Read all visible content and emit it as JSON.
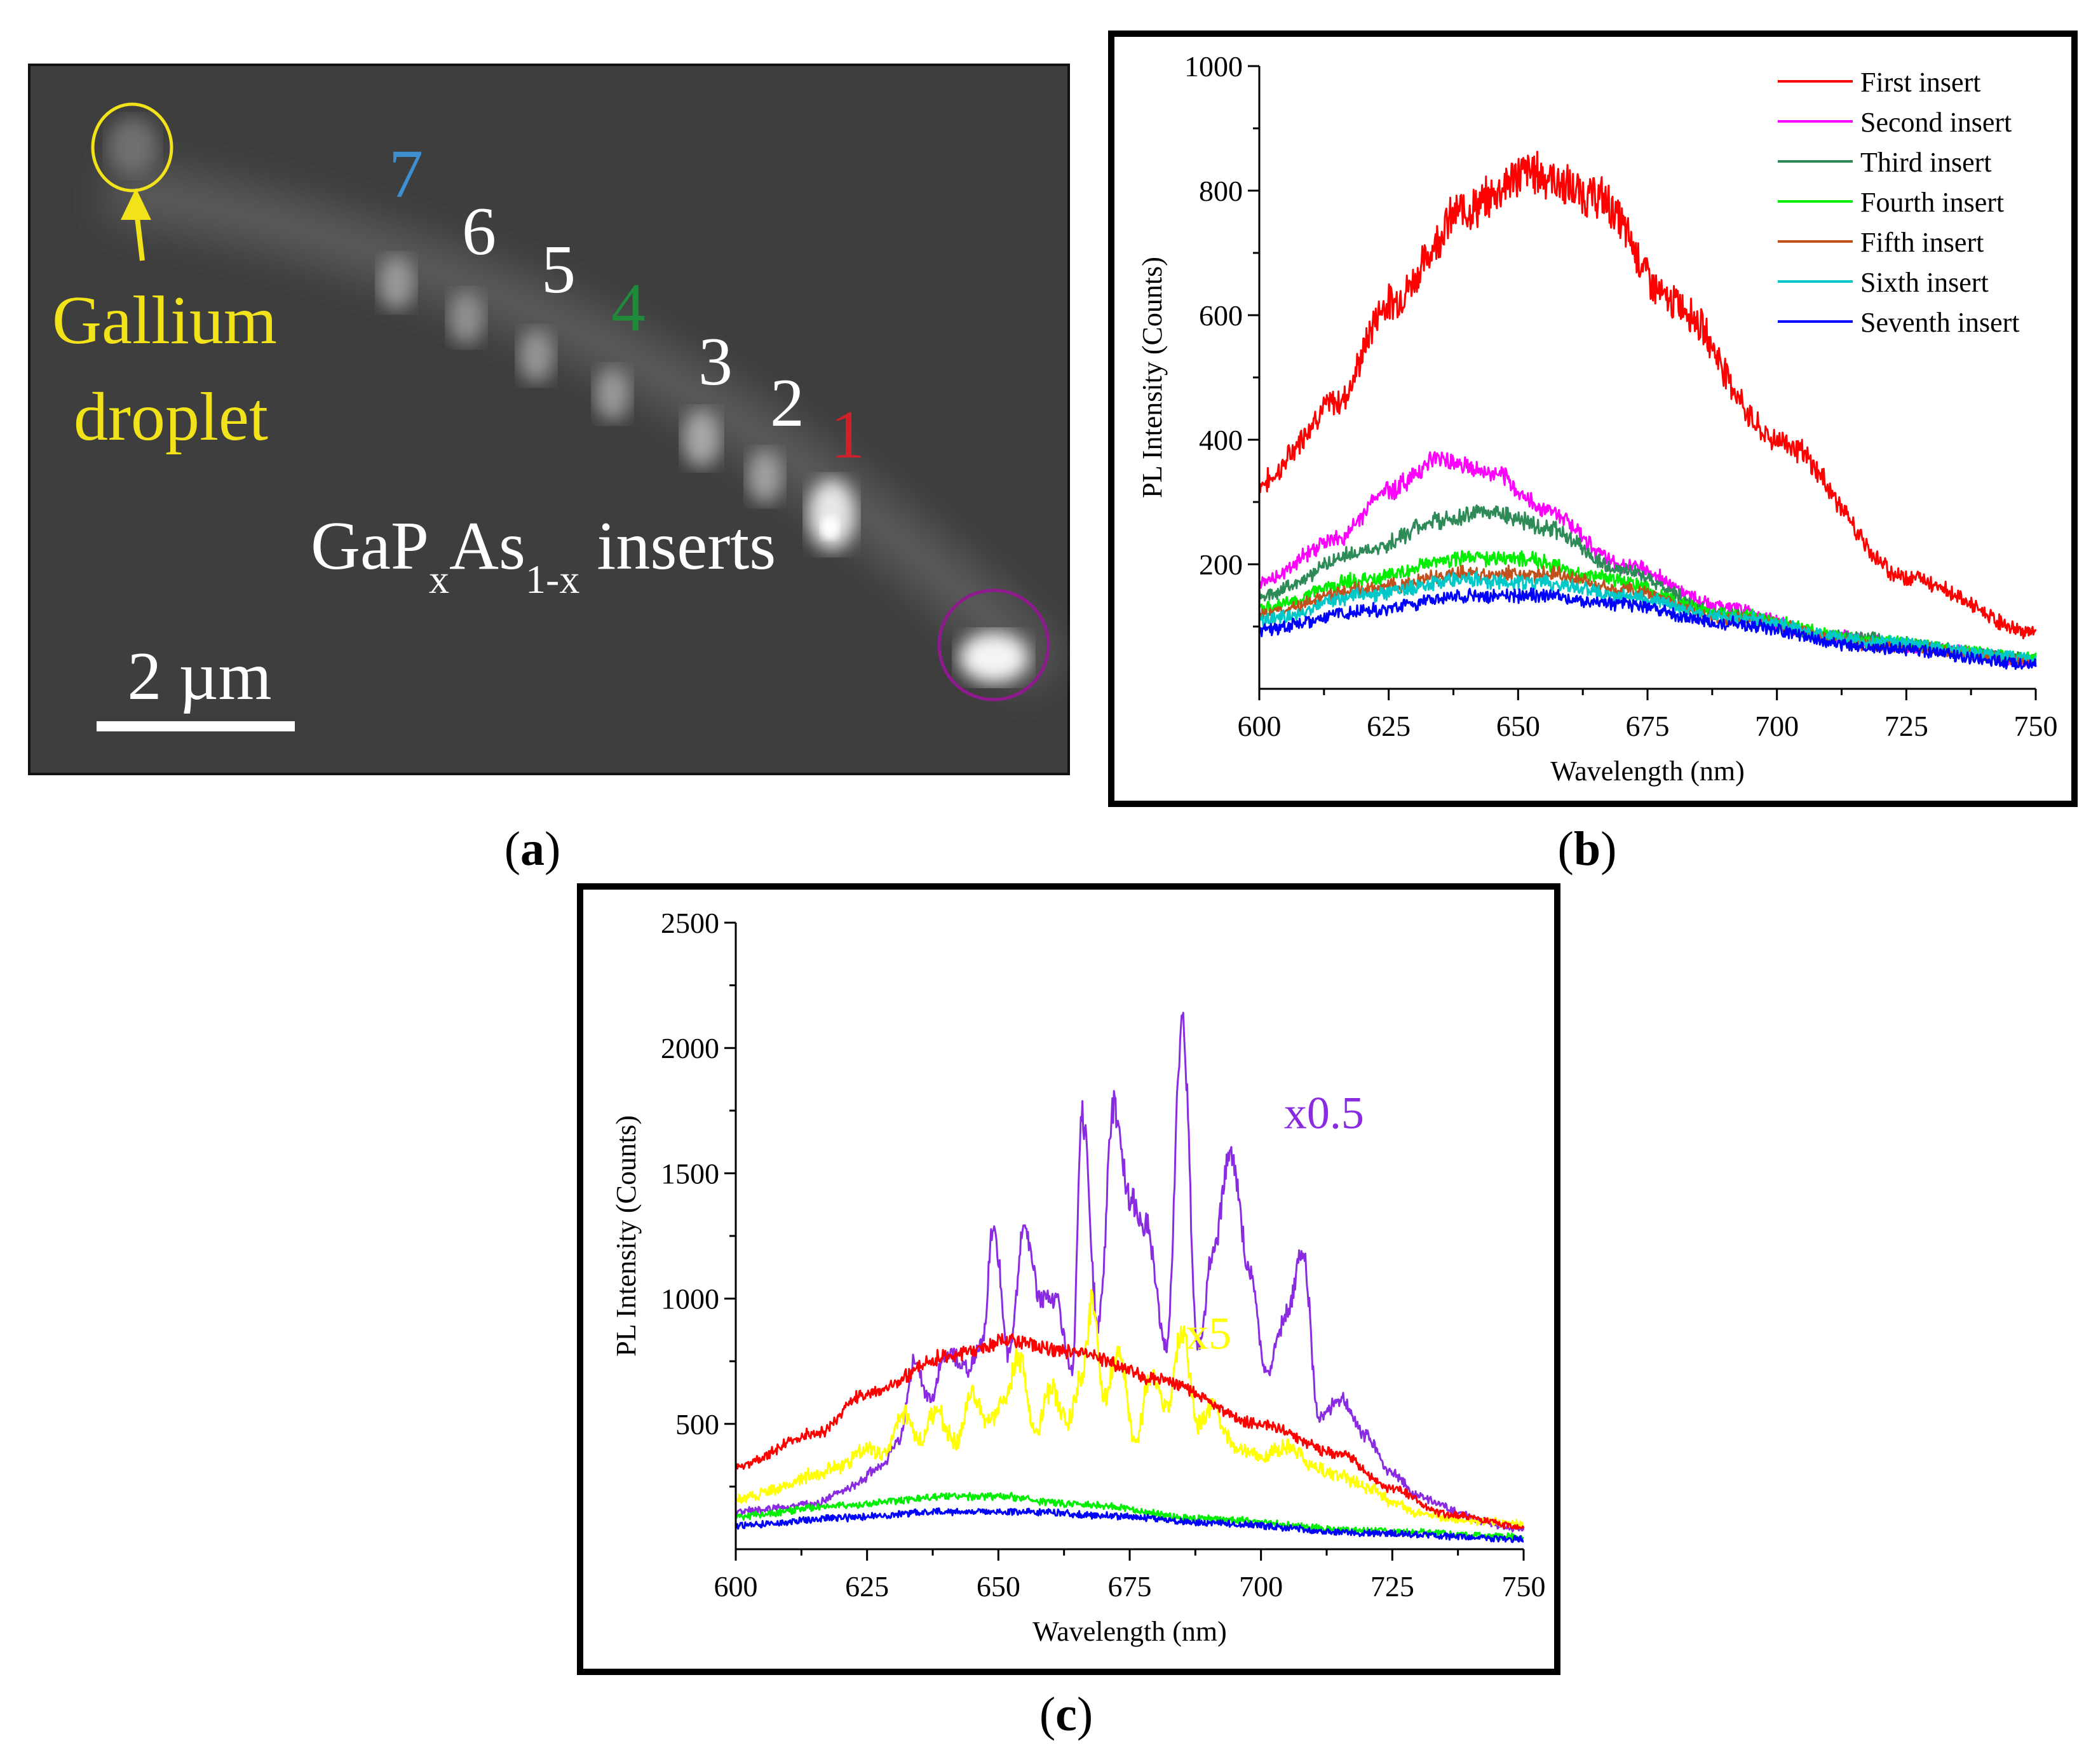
{
  "panel_labels": {
    "a": "a",
    "b": "b",
    "c": "c"
  },
  "micrograph": {
    "insert_numbers": [
      {
        "label": "7",
        "color": "#3d8fd1"
      },
      {
        "label": "6",
        "color": "#ffffff"
      },
      {
        "label": "5",
        "color": "#ffffff"
      },
      {
        "label": "4",
        "color": "#1e8a3a"
      },
      {
        "label": "3",
        "color": "#ffffff"
      },
      {
        "label": "2",
        "color": "#ffffff"
      },
      {
        "label": "1",
        "color": "#d0202a"
      }
    ],
    "droplet_label_line1": "Gallium",
    "droplet_label_line2": "droplet",
    "inserts_label": {
      "ga": "GaP",
      "sub_x": "x",
      "as": "As",
      "sub_1x": "1-x",
      "rest": " inserts"
    },
    "scale_bar_label": "2 µm",
    "colors": {
      "droplet": "#f2e21a",
      "end_circle": "#8e1a8e",
      "background": "#3e3e3e"
    }
  },
  "chart_data": [
    {
      "type": "line",
      "panel": "b",
      "xlabel": "Wavelength (nm)",
      "ylabel": "PL Intensity (Counts)",
      "xlim": [
        600,
        750
      ],
      "ylim": [
        0,
        1000
      ],
      "xticks": [
        600,
        625,
        650,
        675,
        700,
        725,
        750
      ],
      "yticks": [
        200,
        400,
        600,
        800,
        1000
      ],
      "legend_position": "top-right",
      "series": [
        {
          "name": "First insert",
          "color": "#ff0000",
          "x": [
            600,
            615,
            625,
            640,
            652,
            665,
            680,
            700,
            725,
            750
          ],
          "y": [
            330,
            460,
            620,
            770,
            830,
            790,
            620,
            400,
            180,
            90
          ]
        },
        {
          "name": "Second insert",
          "color": "#ff00ff",
          "x": [
            600,
            615,
            625,
            635,
            645,
            655,
            670,
            690,
            710,
            730,
            750
          ],
          "y": [
            170,
            240,
            320,
            370,
            345,
            290,
            200,
            130,
            85,
            65,
            45
          ]
        },
        {
          "name": "Third insert",
          "color": "#2e8b57",
          "x": [
            600,
            620,
            635,
            645,
            655,
            670,
            690,
            710,
            750
          ],
          "y": [
            150,
            220,
            270,
            285,
            260,
            190,
            120,
            85,
            50
          ]
        },
        {
          "name": "Fourth insert",
          "color": "#00ee00",
          "x": [
            600,
            620,
            640,
            650,
            665,
            690,
            720,
            750
          ],
          "y": [
            130,
            175,
            210,
            210,
            180,
            120,
            75,
            50
          ]
        },
        {
          "name": "Fifth insert",
          "color": "#c0501c",
          "x": [
            600,
            620,
            640,
            655,
            670,
            690,
            720,
            750
          ],
          "y": [
            120,
            160,
            185,
            185,
            160,
            115,
            70,
            45
          ]
        },
        {
          "name": "Sixth insert",
          "color": "#00c8c8",
          "x": [
            600,
            620,
            640,
            655,
            670,
            690,
            720,
            750
          ],
          "y": [
            110,
            150,
            175,
            170,
            150,
            115,
            75,
            50
          ]
        },
        {
          "name": "Seventh insert",
          "color": "#0000ff",
          "x": [
            600,
            620,
            640,
            655,
            670,
            690,
            720,
            750
          ],
          "y": [
            95,
            125,
            150,
            150,
            135,
            105,
            65,
            40
          ]
        }
      ]
    },
    {
      "type": "line",
      "panel": "c",
      "xlabel": "Wavelength (nm)",
      "ylabel": "PL Intensity (Counts)",
      "xlim": [
        600,
        750
      ],
      "ylim": [
        0,
        2500
      ],
      "xticks": [
        600,
        625,
        650,
        675,
        700,
        725,
        750
      ],
      "yticks": [
        500,
        1000,
        1500,
        2000,
        2500
      ],
      "annotations": [
        {
          "text": "x0.5",
          "x": 712,
          "y": 1680,
          "color": "#8a2be2"
        },
        {
          "text": "x5",
          "x": 690,
          "y": 800,
          "color": "#ffff00"
        }
      ],
      "series": [
        {
          "name": "x0.5",
          "color": "#8a2be2",
          "x": [
            600,
            615,
            622,
            627,
            631,
            634,
            637,
            640,
            644,
            647,
            649,
            652,
            655,
            658,
            661,
            664,
            666,
            669,
            672,
            675,
            678,
            682,
            685,
            688,
            691,
            694,
            698,
            701,
            705,
            708,
            711,
            715,
            720,
            725,
            730,
            734,
            738,
            742,
            746,
            750
          ],
          "y": [
            150,
            180,
            250,
            320,
            420,
            750,
            590,
            790,
            720,
            820,
            1300,
            780,
            1300,
            1000,
            1000,
            700,
            1730,
            880,
            1780,
            1400,
            1300,
            800,
            2100,
            800,
            1200,
            1580,
            1100,
            700,
            950,
            1200,
            520,
            600,
            450,
            300,
            210,
            180,
            140,
            110,
            90,
            80
          ]
        },
        {
          "name": "x5",
          "color": "#ffff00",
          "x": [
            600,
            605,
            610,
            615,
            620,
            625,
            628,
            632,
            635,
            638,
            642,
            645,
            648,
            651,
            654,
            657,
            660,
            663,
            666,
            668,
            670,
            673,
            676,
            679,
            682,
            685,
            688,
            691,
            695,
            700,
            705,
            710,
            715,
            720,
            725,
            730,
            735,
            740,
            745,
            750
          ],
          "y": [
            200,
            220,
            260,
            300,
            330,
            400,
            380,
            550,
            430,
            550,
            420,
            640,
            500,
            600,
            760,
            450,
            640,
            500,
            700,
            990,
            600,
            800,
            420,
            700,
            560,
            870,
            500,
            560,
            400,
            370,
            410,
            330,
            290,
            250,
            190,
            140,
            130,
            110,
            110,
            100
          ]
        },
        {
          "name": "First insert",
          "color": "#ff0000",
          "x": [
            600,
            615,
            625,
            640,
            652,
            665,
            680,
            700,
            715,
            725,
            735,
            750
          ],
          "y": [
            330,
            460,
            620,
            770,
            830,
            790,
            680,
            500,
            380,
            240,
            140,
            90
          ]
        },
        {
          "name": "Fourth insert",
          "color": "#00ee00",
          "x": [
            600,
            620,
            640,
            650,
            665,
            690,
            720,
            750
          ],
          "y": [
            130,
            175,
            210,
            210,
            180,
            120,
            75,
            50
          ]
        },
        {
          "name": "Seventh insert",
          "color": "#0000ff",
          "x": [
            600,
            620,
            640,
            655,
            670,
            690,
            720,
            750
          ],
          "y": [
            95,
            125,
            150,
            150,
            135,
            105,
            65,
            40
          ]
        }
      ]
    }
  ]
}
